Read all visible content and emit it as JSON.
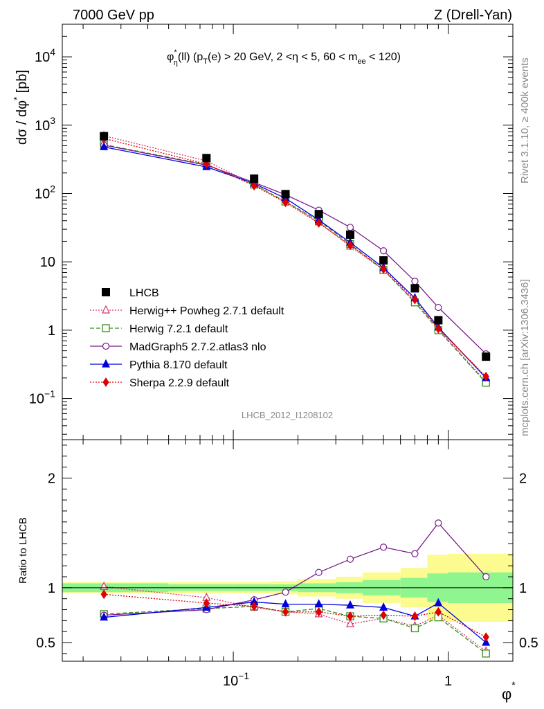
{
  "header": {
    "left": "7000 GeV pp",
    "right": "Z (Drell-Yan)"
  },
  "side_labels": {
    "top": "Rivet 3.1.10, ≥ 400k events",
    "bottom": "mcplots.cern.ch [arXiv:1306.3436]"
  },
  "reference_id": "LHCB_2012_I1208102",
  "colors": {
    "lhcb": "#000000",
    "herwigpp": "#d6336c",
    "herwig7": "#3a8c1e",
    "madgraph": "#7a1a8a",
    "pythia": "#0000dd",
    "sherpa": "#e00000",
    "band_stat": "#8ff58f",
    "band_tot": "#fbfb8f"
  },
  "chart_data": {
    "type": "line",
    "title_parts": {
      "phi": "φ",
      "star": "*",
      "eta_sub": "η",
      "ll": "(ll) (p",
      "T_sub": "T",
      "cuts": "(e) > 20 GeV, 2 <η < 5, 60 < m",
      "ee_sub": "ee",
      "end": " < 120)"
    },
    "ylabel": "dσ / dφ* [pb]",
    "ylabel_parts": {
      "main": "dσ / dφ",
      "star": "*",
      "unit": " [pb]"
    },
    "ratio_ylabel": "Ratio to LHCB",
    "xlabel": "φ*",
    "xlabel_parts": {
      "main": "φ",
      "star": "*"
    },
    "xscale": "log",
    "xlim": [
      0.016,
      2.0
    ],
    "ylim": [
      0.025,
      30000
    ],
    "ratio_ylim": [
      0.33,
      2.35
    ],
    "x_tick_labels": [
      {
        "value": 0.1,
        "base": "10",
        "exp": "−1"
      },
      {
        "value": 1,
        "base": "1",
        "exp": ""
      }
    ],
    "y_tick_labels": [
      {
        "value": 10000,
        "base": "10",
        "exp": "4"
      },
      {
        "value": 1000,
        "base": "10",
        "exp": "3"
      },
      {
        "value": 100,
        "base": "10",
        "exp": "2"
      },
      {
        "value": 10,
        "base": "10",
        "exp": ""
      },
      {
        "value": 1,
        "base": "1",
        "exp": ""
      },
      {
        "value": 0.1,
        "base": "10",
        "exp": "−1"
      }
    ],
    "ratio_tick_labels": [
      {
        "value": 2,
        "label": "2"
      },
      {
        "value": 1,
        "label": "1"
      },
      {
        "value": 0.5,
        "label": "0.5"
      }
    ],
    "bin_edges": [
      0.0,
      0.05,
      0.1,
      0.15,
      0.2,
      0.3,
      0.4,
      0.6,
      0.8,
      1.0,
      2.0
    ],
    "x": [
      0.025,
      0.075,
      0.125,
      0.175,
      0.25,
      0.35,
      0.5,
      0.7,
      0.9,
      1.5
    ],
    "lhcb": {
      "name": "LHCB",
      "values": [
        690,
        330,
        165,
        98,
        50,
        25,
        10.5,
        4.1,
        1.4,
        0.41
      ],
      "band_stat": [
        0.04,
        0.03,
        0.03,
        0.03,
        0.04,
        0.05,
        0.07,
        0.09,
        0.13,
        0.14
      ],
      "band_tot": [
        0.05,
        0.05,
        0.05,
        0.06,
        0.08,
        0.1,
        0.14,
        0.18,
        0.3,
        0.31
      ]
    },
    "series": [
      {
        "name": "Herwig++ Powheg 2.7.1 default",
        "key": "herwigpp",
        "marker": "triangle-open",
        "dash": "2,2",
        "values": [
          700,
          300,
          135,
          76,
          38,
          16.8,
          7.6,
          2.65,
          1.05,
          0.175
        ],
        "ratio": [
          1.01,
          0.91,
          0.82,
          0.78,
          0.76,
          0.67,
          0.72,
          0.65,
          0.75,
          0.42
        ]
      },
      {
        "name": "Herwig 7.2.1 default",
        "key": "herwig7",
        "marker": "square-open",
        "dash": "6,3",
        "values": [
          520,
          265,
          135,
          76,
          40,
          18.2,
          7.6,
          2.55,
          1.0,
          0.17
        ],
        "ratio": [
          0.76,
          0.81,
          0.83,
          0.78,
          0.81,
          0.74,
          0.72,
          0.63,
          0.73,
          0.4
        ]
      },
      {
        "name": "MadGraph5 2.7.2.atlas3 nlo",
        "key": "madgraph",
        "marker": "circle-open",
        "dash": "",
        "values": [
          510,
          260,
          145,
          96,
          57,
          32,
          14.5,
          5.2,
          2.15,
          0.45
        ],
        "ratio": [
          0.75,
          0.8,
          0.89,
          0.96,
          1.14,
          1.26,
          1.37,
          1.31,
          1.59,
          1.1
        ]
      },
      {
        "name": "Pythia 8.170 default",
        "key": "pythia",
        "marker": "triangle",
        "dash": "",
        "values": [
          480,
          245,
          140,
          85,
          41,
          19.2,
          8.2,
          2.95,
          1.1,
          0.2
        ],
        "ratio": [
          0.73,
          0.82,
          0.87,
          0.85,
          0.85,
          0.84,
          0.82,
          0.74,
          0.86,
          0.5
        ]
      },
      {
        "name": "Sherpa 2.2.9 default",
        "key": "sherpa",
        "marker": "diamond",
        "dash": "2,2",
        "values": [
          640,
          270,
          130,
          74,
          37,
          17.5,
          7.8,
          2.8,
          1.05,
          0.21
        ],
        "ratio": [
          0.94,
          0.86,
          0.83,
          0.78,
          0.78,
          0.74,
          0.75,
          0.74,
          0.78,
          0.55
        ]
      }
    ]
  }
}
